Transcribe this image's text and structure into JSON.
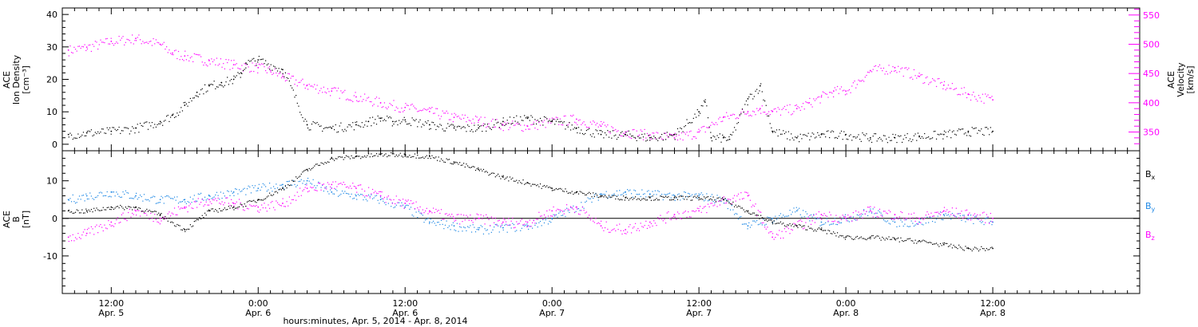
{
  "chart_data": [
    {
      "type": "scatter",
      "panel": "top",
      "left_axis_title": [
        "ACE",
        "Ion Density",
        "[cm⁻³]"
      ],
      "right_axis_title": [
        "ACE",
        "Velocity",
        "[km/s]"
      ],
      "left_ylim": [
        -2,
        42
      ],
      "left_ticks": [
        0,
        10,
        20,
        30,
        40
      ],
      "right_ylim": [
        318,
        562
      ],
      "right_ticks": [
        350,
        400,
        450,
        500,
        550
      ],
      "colors": {
        "density": "#000000",
        "velocity": "#ff00ff"
      },
      "series": [
        {
          "name": "",
          "axis": "left",
          "color": "#000000",
          "x": [
            8.5,
            10,
            12,
            14,
            16,
            17,
            18,
            19,
            20,
            21,
            22,
            22.6,
            23,
            24,
            26,
            28,
            30,
            32,
            33,
            34,
            35,
            36,
            38,
            40,
            42,
            44,
            46,
            48,
            50,
            52,
            54,
            56,
            58,
            60,
            60.5,
            61,
            62,
            62.5,
            64,
            65,
            66,
            68,
            70,
            72,
            74,
            76,
            78,
            80,
            82,
            84
          ],
          "y": [
            3,
            3.5,
            4,
            5,
            7,
            9,
            12,
            16,
            18,
            19,
            20,
            22,
            25,
            26,
            23,
            6,
            5,
            6,
            7,
            8,
            7,
            7.5,
            6,
            5,
            5,
            7,
            8,
            7,
            5,
            3,
            3,
            2,
            3,
            10,
            13,
            2,
            2,
            1.5,
            14,
            18,
            4,
            2,
            3,
            3,
            2,
            2,
            2.5,
            3,
            4,
            4
          ]
        },
        {
          "name": "",
          "axis": "right",
          "color": "#ff00ff",
          "x": [
            8.5,
            10,
            12,
            14,
            16,
            17,
            18,
            20,
            22,
            24,
            25,
            26,
            28,
            30,
            32,
            34,
            36,
            38,
            40,
            42,
            44,
            46,
            48,
            50,
            52,
            54,
            56,
            58,
            60,
            62,
            64,
            65,
            66,
            68,
            69,
            70,
            71,
            72,
            74,
            76,
            78,
            80,
            82,
            84
          ],
          "y": [
            490,
            495,
            505,
            510,
            500,
            485,
            480,
            472,
            465,
            460,
            455,
            445,
            430,
            420,
            410,
            400,
            392,
            385,
            375,
            370,
            362,
            360,
            368,
            372,
            360,
            350,
            345,
            340,
            350,
            375,
            385,
            390,
            385,
            390,
            400,
            410,
            420,
            420,
            455,
            460,
            445,
            430,
            415,
            405
          ]
        }
      ]
    },
    {
      "type": "scatter",
      "panel": "bottom",
      "left_axis_title": [
        "ACE",
        "B",
        "[nT]"
      ],
      "ylim": [
        -20,
        18
      ],
      "left_ticks": [
        -10,
        0,
        10
      ],
      "zero_line": true,
      "legend_position": "right",
      "legend": [
        {
          "label": "B",
          "sub": "x",
          "color": "#000000"
        },
        {
          "label": "B",
          "sub": "y",
          "color": "#1e88e5"
        },
        {
          "label": "B",
          "sub": "z",
          "color": "#ff00ff"
        }
      ],
      "series": [
        {
          "name": "B_x",
          "color": "#000000",
          "x": [
            8.5,
            10,
            12,
            14,
            16,
            18,
            20,
            22,
            24,
            26,
            28,
            30,
            32,
            34,
            36,
            38,
            40,
            42,
            44,
            46,
            48,
            50,
            52,
            54,
            56,
            58,
            60,
            62,
            64,
            66,
            68,
            70,
            72,
            74,
            76,
            78,
            80,
            82,
            84
          ],
          "y": [
            2,
            2,
            3,
            3,
            1,
            -3,
            2,
            3,
            5,
            8,
            13,
            16,
            16.5,
            17,
            17,
            16.5,
            15,
            13,
            11,
            9.5,
            8,
            7,
            6,
            5.5,
            5.5,
            5.5,
            5.5,
            5,
            2,
            -1,
            -2,
            -3,
            -5,
            -5,
            -5.5,
            -6,
            -7,
            -8,
            -8
          ]
        },
        {
          "name": "B_y",
          "color": "#1e88e5",
          "x": [
            8.5,
            10,
            12,
            14,
            16,
            18,
            20,
            22,
            24,
            26,
            28,
            30,
            32,
            34,
            36,
            38,
            40,
            42,
            44,
            46,
            48,
            50,
            52,
            54,
            56,
            58,
            60,
            62,
            64,
            66,
            68,
            70,
            72,
            74,
            76,
            78,
            80,
            82,
            84
          ],
          "y": [
            5,
            6,
            7,
            6,
            5,
            5,
            6,
            7,
            8,
            9,
            10,
            7,
            6,
            5,
            3,
            -1,
            -2,
            -3,
            -2.5,
            -2,
            0,
            3,
            6.5,
            7,
            6.5,
            6,
            6,
            5,
            -2,
            0,
            2,
            -1,
            0,
            2,
            -1,
            -1,
            1,
            0,
            -1
          ]
        },
        {
          "name": "B_z",
          "color": "#ff00ff",
          "x": [
            8.5,
            10,
            12,
            14,
            16,
            18,
            20,
            22,
            24,
            26,
            28,
            30,
            32,
            34,
            36,
            38,
            40,
            42,
            44,
            46,
            48,
            50,
            52,
            54,
            56,
            58,
            60,
            62,
            64,
            66,
            68,
            70,
            72,
            74,
            76,
            78,
            80,
            82,
            84
          ],
          "y": [
            -5,
            -4,
            -1,
            2,
            0,
            3,
            5,
            4,
            3,
            4,
            8,
            9,
            8,
            6,
            4,
            2,
            0,
            0,
            -1,
            -1,
            2,
            3,
            -2,
            -3,
            -1,
            1,
            2,
            5,
            6,
            -5,
            -2,
            1,
            0,
            2,
            1,
            0,
            2,
            1,
            0
          ]
        }
      ]
    }
  ],
  "xaxis": {
    "title": "hours:minutes, Apr.  5, 2014 - Apr.  8, 2014",
    "xlim": [
      8,
      96
    ],
    "major_ticks": [
      12,
      24,
      36,
      48,
      60,
      72,
      84,
      96
    ],
    "tick_labels": [
      {
        "x": 12,
        "time": "12:00",
        "date": "Apr. 5"
      },
      {
        "x": 24,
        "time": "0:00",
        "date": "Apr. 6"
      },
      {
        "x": 36,
        "time": "12:00",
        "date": "Apr. 6"
      },
      {
        "x": 48,
        "time": "0:00",
        "date": "Apr. 7"
      },
      {
        "x": 60,
        "time": "12:00",
        "date": "Apr. 7"
      },
      {
        "x": 72,
        "time": "0:00",
        "date": "Apr. 8"
      },
      {
        "x": 84,
        "time": "12:00",
        "date": "Apr. 8"
      }
    ]
  }
}
